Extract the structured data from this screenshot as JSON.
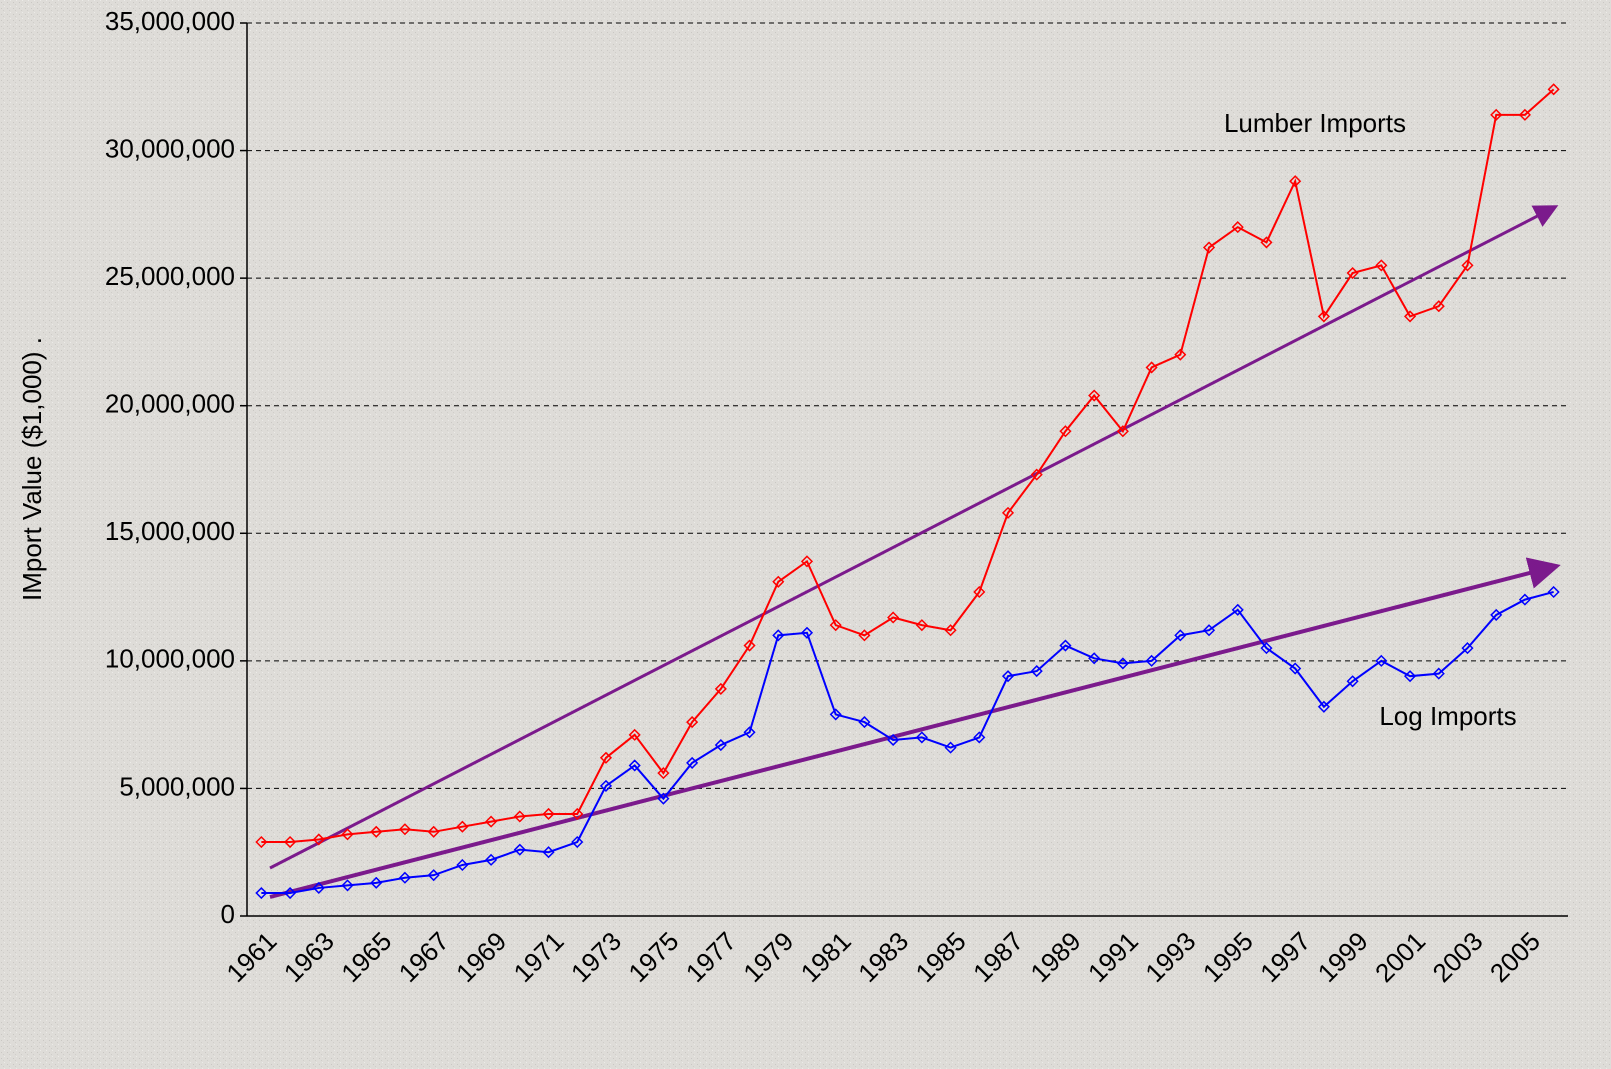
{
  "chart_data": {
    "type": "line",
    "y_label": "IMport Value ($1,000)      .",
    "categories": [
      "1961",
      null,
      "1963",
      null,
      "1965",
      null,
      "1967",
      null,
      "1969",
      null,
      "1971",
      null,
      "1973",
      null,
      "1975",
      null,
      "1977",
      null,
      "1979",
      null,
      "1981",
      null,
      "1983",
      null,
      "1985",
      null,
      "1987",
      null,
      "1989",
      null,
      "1991",
      null,
      "1993",
      null,
      "1995",
      null,
      "1997",
      null,
      "1999",
      null,
      "2001",
      null,
      "2003",
      null,
      "2005",
      null
    ],
    "series": [
      {
        "name": "Lumber Imports",
        "color": "#ff0000",
        "values": [
          2900000,
          2900000,
          3000000,
          3200000,
          3300000,
          3400000,
          3300000,
          3500000,
          3700000,
          3900000,
          4000000,
          4000000,
          6200000,
          7100000,
          5600000,
          7600000,
          8900000,
          10600000,
          13100000,
          13900000,
          11400000,
          11000000,
          11700000,
          11400000,
          11200000,
          12700000,
          15800000,
          17300000,
          19000000,
          20400000,
          19000000,
          21500000,
          22000000,
          26200000,
          27000000,
          26400000,
          28800000,
          23500000,
          25200000,
          25500000,
          23500000,
          23900000,
          25500000,
          31400000,
          31400000,
          32400000
        ]
      },
      {
        "name": "Log Imports",
        "color": "#0000ff",
        "values": [
          900000,
          900000,
          1100000,
          1200000,
          1300000,
          1500000,
          1600000,
          2000000,
          2200000,
          2600000,
          2500000,
          2900000,
          5100000,
          5900000,
          4600000,
          6000000,
          6700000,
          7200000,
          11000000,
          11100000,
          7900000,
          7600000,
          6900000,
          7000000,
          6600000,
          7000000,
          9400000,
          9600000,
          10600000,
          10100000,
          9900000,
          10000000,
          11000000,
          11200000,
          12000000,
          10500000,
          9700000,
          8200000,
          9200000,
          10000000,
          9400000,
          9500000,
          10500000,
          11800000,
          12400000,
          12700000
        ]
      }
    ],
    "ylim": [
      0,
      35000000
    ],
    "yticks": [
      0,
      {
        "value": 5000000,
        "label": "5,000,000"
      },
      {
        "value": 10000000,
        "label": "10,000,000"
      },
      {
        "value": 15000000,
        "label": "15,000,000"
      },
      {
        "value": 20000000,
        "label": "20,000,000"
      },
      {
        "value": 25000000,
        "label": "25,000,000"
      },
      {
        "value": 30000000,
        "label": "30,000,000"
      },
      {
        "value": 35000000,
        "label": "35,000,000"
      }
    ],
    "grid": true
  }
}
